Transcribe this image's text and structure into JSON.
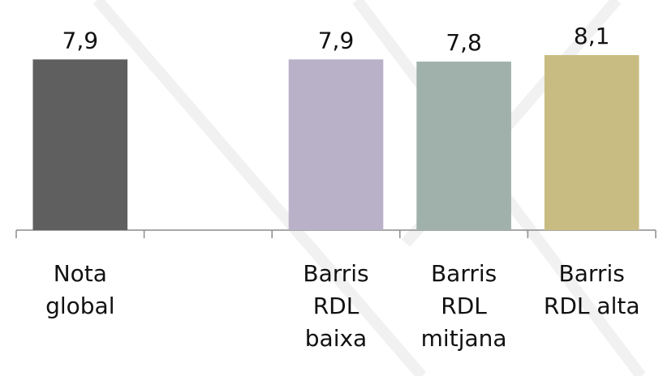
{
  "chart_data": {
    "type": "bar",
    "categories": [
      "Nota global",
      null,
      "Barris RDL baixa",
      "Barris RDL mitjana",
      "Barris RDL alta"
    ],
    "values": [
      7.9,
      null,
      7.9,
      7.8,
      8.1
    ],
    "value_labels": [
      "7,9",
      null,
      "7,9",
      "7,8",
      "8,1"
    ],
    "colors": [
      "#5f5f5f",
      null,
      "#b8b1c8",
      "#a0b1ab",
      "#c9bc83"
    ],
    "ylim": [
      0,
      9
    ]
  }
}
